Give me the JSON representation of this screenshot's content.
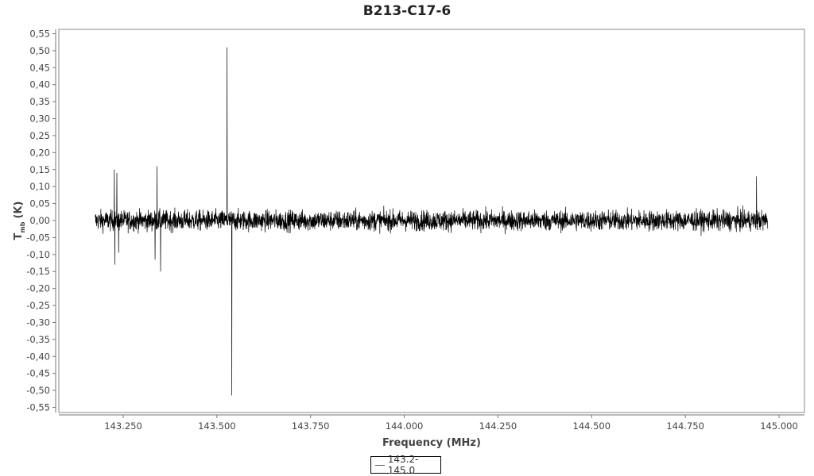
{
  "chart_data": {
    "type": "line",
    "title": "B213-C17-6",
    "xlabel": "Frequency (MHz)",
    "ylabel": "T",
    "ylabel_sub": "mb",
    "ylabel_unit": "(K)",
    "xlim": [
      143.17,
      145.07
    ],
    "ylim": [
      -0.56,
      0.565
    ],
    "x_ticks": [
      "143.250",
      "143.500",
      "143.750",
      "144.000",
      "144.250",
      "144.500",
      "144.750",
      "145.000"
    ],
    "x_tick_values": [
      143.25,
      143.5,
      143.75,
      144.0,
      144.25,
      144.5,
      144.75,
      145.0
    ],
    "y_ticks": [
      "0,55",
      "0,50",
      "0,45",
      "0,40",
      "0,35",
      "0,30",
      "0,25",
      "0,20",
      "0,15",
      "0,10",
      "0,05",
      "0,00",
      "-0,05",
      "-0,10",
      "-0,15",
      "-0,20",
      "-0,25",
      "-0,30",
      "-0,35",
      "-0,40",
      "-0,45",
      "-0,50",
      "-0,55"
    ],
    "y_tick_values": [
      0.55,
      0.5,
      0.45,
      0.4,
      0.35,
      0.3,
      0.25,
      0.2,
      0.15,
      0.1,
      0.05,
      0,
      -0.05,
      -0.1,
      -0.15,
      -0.2,
      -0.25,
      -0.3,
      -0.35,
      -0.4,
      -0.45,
      -0.5,
      -0.55
    ],
    "grid": false,
    "legend_position": "bottom-center",
    "series": [
      {
        "name": "143.2-145.0",
        "color": "#000000",
        "x_range": [
          143.175,
          144.97
        ],
        "baseline": 0.0,
        "noise_peak": 0.06,
        "features": [
          {
            "x": 143.226,
            "y": 0.15
          },
          {
            "x": 143.228,
            "y": -0.13
          },
          {
            "x": 143.233,
            "y": 0.14
          },
          {
            "x": 143.238,
            "y": -0.095
          },
          {
            "x": 143.335,
            "y": -0.115
          },
          {
            "x": 143.34,
            "y": 0.16
          },
          {
            "x": 143.35,
            "y": -0.15
          },
          {
            "x": 143.527,
            "y": 0.51
          },
          {
            "x": 143.54,
            "y": -0.515
          },
          {
            "x": 144.94,
            "y": 0.13
          }
        ]
      }
    ]
  }
}
